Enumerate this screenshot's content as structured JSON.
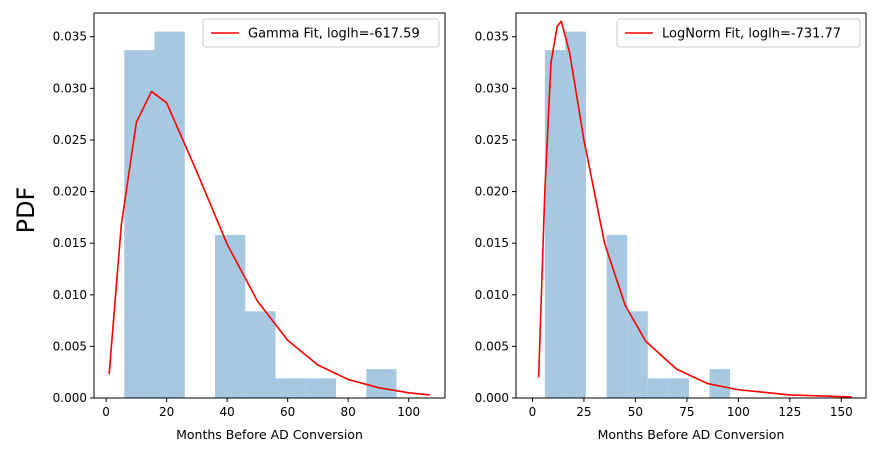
{
  "figure": {
    "shared_ylabel": "PDF"
  },
  "chart_data": [
    {
      "type": "bar",
      "title": "",
      "xlabel": "Months Before AD Conversion",
      "ylabel": "PDF",
      "xlim": [
        -4,
        112
      ],
      "ylim": [
        0,
        0.0373
      ],
      "xticks": [
        0,
        20,
        40,
        60,
        80,
        100
      ],
      "yticks": [
        0.0,
        0.005,
        0.01,
        0.015,
        0.02,
        0.025,
        0.03,
        0.035
      ],
      "ytick_labels": [
        "0.000",
        "0.005",
        "0.010",
        "0.015",
        "0.020",
        "0.025",
        "0.030",
        "0.035"
      ],
      "legend_placement": "upper right",
      "histogram": {
        "color": "#a6c8e0",
        "bins": [
          {
            "x0": 6,
            "x1": 16,
            "value": 0.0337
          },
          {
            "x0": 16,
            "x1": 26,
            "value": 0.0355
          },
          {
            "x0": 26,
            "x1": 36,
            "value": 0.0
          },
          {
            "x0": 36,
            "x1": 46,
            "value": 0.0158
          },
          {
            "x0": 46,
            "x1": 56,
            "value": 0.0084
          },
          {
            "x0": 56,
            "x1": 66,
            "value": 0.0019
          },
          {
            "x0": 66,
            "x1": 76,
            "value": 0.0019
          },
          {
            "x0": 76,
            "x1": 86,
            "value": 0.0
          },
          {
            "x0": 86,
            "x1": 96,
            "value": 0.0028
          }
        ]
      },
      "series": [
        {
          "name": "Gamma Fit, loglh=-617.59",
          "color": "#ff0000",
          "distribution": "gamma",
          "points": [
            [
              1,
              0.0023
            ],
            [
              5,
              0.0167
            ],
            [
              10,
              0.0267
            ],
            [
              15,
              0.0297
            ],
            [
              20,
              0.0286
            ],
            [
              30,
              0.0219
            ],
            [
              40,
              0.0149
            ],
            [
              50,
              0.0094
            ],
            [
              60,
              0.0056
            ],
            [
              70,
              0.0032
            ],
            [
              80,
              0.0018
            ],
            [
              90,
              0.001
            ],
            [
              100,
              0.0005
            ],
            [
              107,
              0.0003
            ]
          ]
        }
      ]
    },
    {
      "type": "bar",
      "title": "",
      "xlabel": "Months Before AD Conversion",
      "ylabel": "",
      "xlim": [
        -8,
        162
      ],
      "ylim": [
        0,
        0.0373
      ],
      "xticks": [
        0,
        25,
        50,
        75,
        100,
        125,
        150
      ],
      "yticks": [
        0.0,
        0.005,
        0.01,
        0.015,
        0.02,
        0.025,
        0.03,
        0.035
      ],
      "ytick_labels": [
        "0.000",
        "0.005",
        "0.010",
        "0.015",
        "0.020",
        "0.025",
        "0.030",
        "0.035"
      ],
      "legend_placement": "upper right",
      "histogram": {
        "color": "#a6c8e0",
        "bins": [
          {
            "x0": 6,
            "x1": 16,
            "value": 0.0337
          },
          {
            "x0": 16,
            "x1": 26,
            "value": 0.0355
          },
          {
            "x0": 26,
            "x1": 36,
            "value": 0.0
          },
          {
            "x0": 36,
            "x1": 46,
            "value": 0.0158
          },
          {
            "x0": 46,
            "x1": 56,
            "value": 0.0084
          },
          {
            "x0": 56,
            "x1": 66,
            "value": 0.0019
          },
          {
            "x0": 66,
            "x1": 76,
            "value": 0.0019
          },
          {
            "x0": 76,
            "x1": 86,
            "value": 0.0
          },
          {
            "x0": 86,
            "x1": 96,
            "value": 0.0028
          }
        ]
      },
      "series": [
        {
          "name": "LogNorm Fit, loglh=-731.77",
          "color": "#ff0000",
          "distribution": "lognormal",
          "points": [
            [
              3,
              0.002
            ],
            [
              6,
              0.02
            ],
            [
              9,
              0.0325
            ],
            [
              12,
              0.036
            ],
            [
              14,
              0.0365
            ],
            [
              18,
              0.0335
            ],
            [
              25,
              0.025
            ],
            [
              35,
              0.015
            ],
            [
              45,
              0.009
            ],
            [
              55,
              0.0055
            ],
            [
              70,
              0.0028
            ],
            [
              85,
              0.0014
            ],
            [
              100,
              0.0008
            ],
            [
              125,
              0.0003
            ],
            [
              155,
              0.0001
            ]
          ]
        }
      ]
    }
  ]
}
